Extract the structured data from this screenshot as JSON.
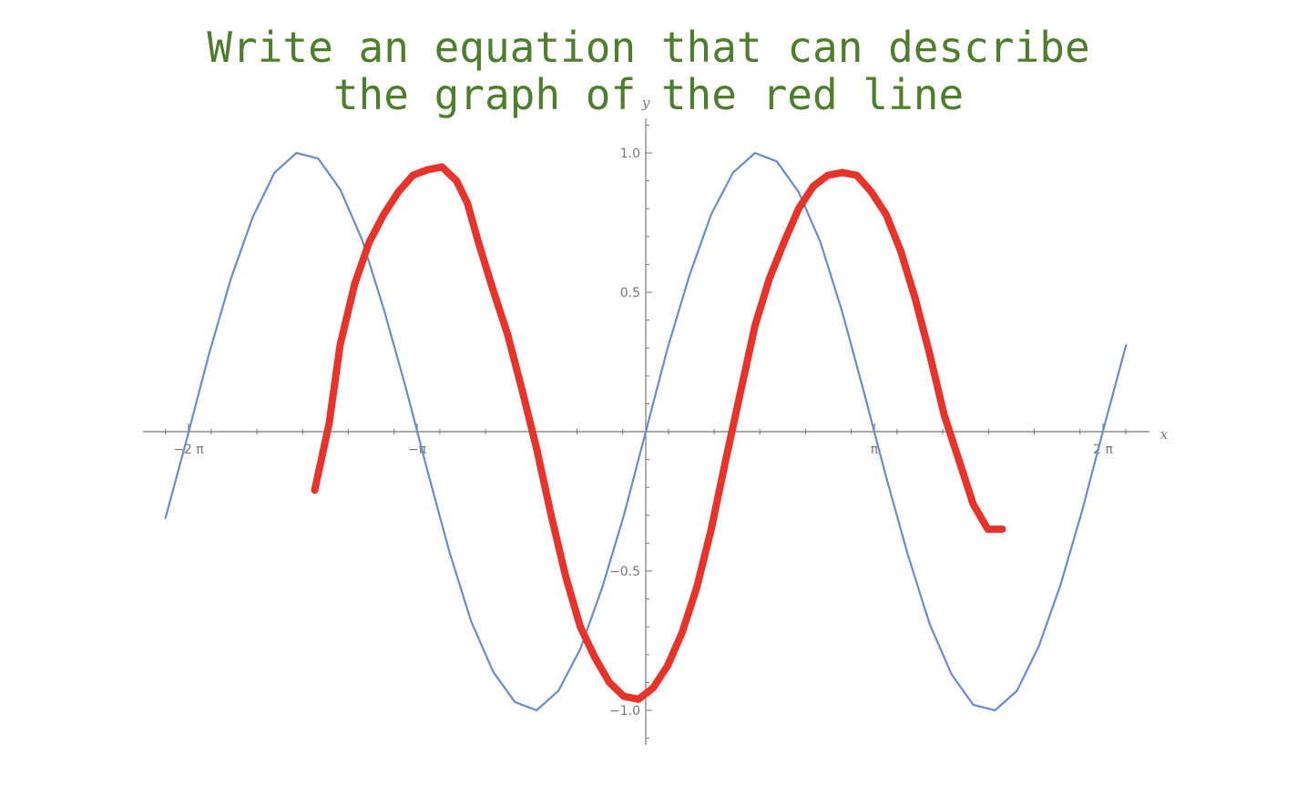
{
  "title_line1": "Write an equation that can describe",
  "title_line2": "the graph of the red line",
  "colors": {
    "title": "#4f7d2e",
    "blue": "#6b8dc2",
    "red": "#e8332a",
    "axis": "#777777"
  },
  "chart_data": {
    "type": "line",
    "xlabel": "x",
    "ylabel": "y",
    "xlim": [
      -6.9,
      6.9
    ],
    "ylim": [
      -1.12,
      1.12
    ],
    "x_ticks": [
      {
        "value": -6.2832,
        "label": "−2 π"
      },
      {
        "value": -3.1416,
        "label": "−π"
      },
      {
        "value": 3.1416,
        "label": "π"
      },
      {
        "value": 6.2832,
        "label": "2 π"
      }
    ],
    "y_ticks": [
      {
        "value": 1.0,
        "label": "1.0"
      },
      {
        "value": 0.5,
        "label": "0.5"
      },
      {
        "value": -0.5,
        "label": "−0.5"
      },
      {
        "value": -1.0,
        "label": "−1.0"
      }
    ],
    "series": [
      {
        "style": "thin",
        "color": "#6b8dc2",
        "x": [
          -6.6,
          -6.3,
          -6.0,
          -5.7,
          -5.4,
          -5.1,
          -4.8,
          -4.5,
          -4.2,
          -3.9,
          -3.6,
          -3.3,
          -3.0,
          -2.7,
          -2.4,
          -2.1,
          -1.8,
          -1.5,
          -1.2,
          -0.9,
          -0.6,
          -0.3,
          0.0,
          0.3,
          0.6,
          0.9,
          1.2,
          1.5,
          1.8,
          2.1,
          2.4,
          2.7,
          3.0,
          3.3,
          3.6,
          3.9,
          4.2,
          4.5,
          4.8,
          5.1,
          5.4,
          5.7,
          6.0,
          6.3,
          6.6
        ],
        "y": [
          -0.31,
          -0.02,
          0.28,
          0.55,
          0.77,
          0.93,
          1.0,
          0.98,
          0.87,
          0.69,
          0.44,
          0.16,
          -0.14,
          -0.43,
          -0.68,
          -0.86,
          -0.97,
          -1.0,
          -0.93,
          -0.78,
          -0.56,
          -0.3,
          0.0,
          0.3,
          0.56,
          0.78,
          0.93,
          1.0,
          0.97,
          0.86,
          0.68,
          0.43,
          0.14,
          -0.16,
          -0.44,
          -0.69,
          -0.87,
          -0.98,
          -1.0,
          -0.93,
          -0.77,
          -0.55,
          -0.28,
          0.02,
          0.31
        ]
      },
      {
        "style": "hand-drawn",
        "color": "#e8332a",
        "x": [
          -4.55,
          -4.35,
          -4.2,
          -4.0,
          -3.8,
          -3.6,
          -3.4,
          -3.2,
          -3.0,
          -2.8,
          -2.6,
          -2.45,
          -2.3,
          -2.1,
          -1.9,
          -1.7,
          -1.5,
          -1.3,
          -1.1,
          -0.9,
          -0.7,
          -0.5,
          -0.3,
          -0.1,
          0.1,
          0.3,
          0.5,
          0.7,
          0.9,
          1.1,
          1.3,
          1.5,
          1.7,
          1.9,
          2.1,
          2.3,
          2.5,
          2.7,
          2.9,
          3.1,
          3.3,
          3.5,
          3.7,
          3.9,
          4.1,
          4.3,
          4.5,
          4.7,
          4.9
        ],
        "y": [
          -0.21,
          0.03,
          0.31,
          0.53,
          0.68,
          0.78,
          0.86,
          0.92,
          0.94,
          0.95,
          0.9,
          0.82,
          0.68,
          0.51,
          0.35,
          0.15,
          -0.06,
          -0.3,
          -0.52,
          -0.7,
          -0.81,
          -0.9,
          -0.95,
          -0.96,
          -0.92,
          -0.84,
          -0.72,
          -0.56,
          -0.35,
          -0.1,
          0.14,
          0.38,
          0.55,
          0.68,
          0.8,
          0.88,
          0.92,
          0.93,
          0.92,
          0.86,
          0.78,
          0.65,
          0.48,
          0.28,
          0.06,
          -0.1,
          -0.26,
          -0.35,
          -0.35
        ]
      }
    ]
  }
}
